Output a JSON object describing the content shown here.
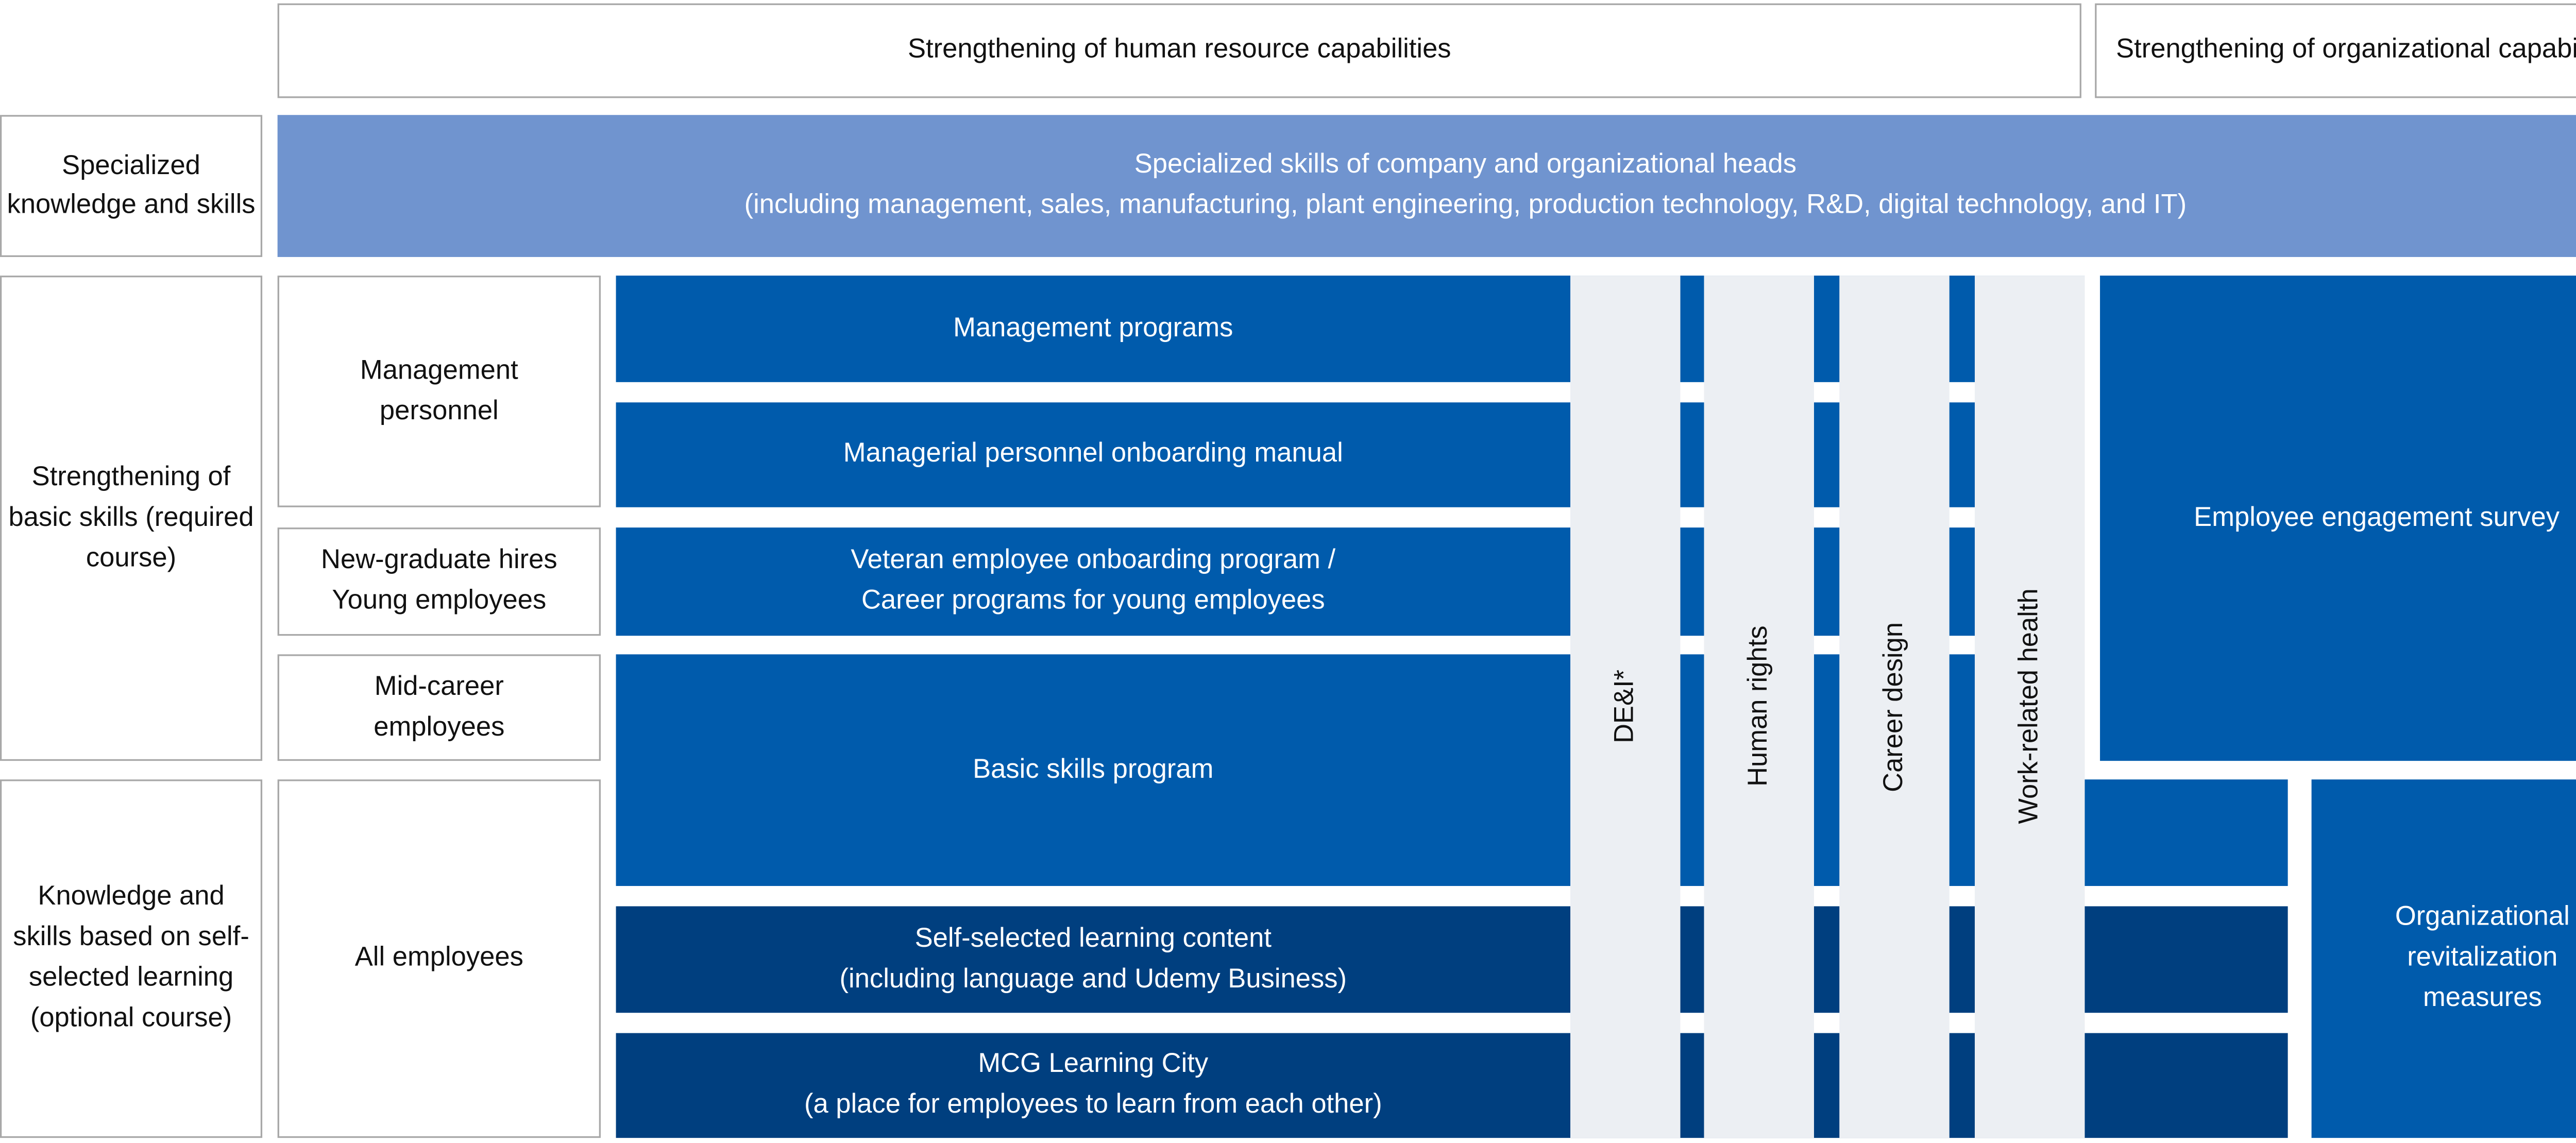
{
  "header": {
    "human_resource": "Strengthening of human resource capabilities",
    "organizational": "Strengthening of organizational capabilities"
  },
  "rows": {
    "specialized": "Specialized knowledge and skills",
    "basic": "Strengthening of basic skills (required course)",
    "self_selected": "Knowledge and skills based on self-selected learning (optional course)"
  },
  "targets": {
    "management": "Management personnel",
    "new_grad": "New-graduate hires Young employees",
    "mid_career": "Mid-career employees",
    "all": "All employees"
  },
  "specialized_bar": {
    "line1": "Specialized skills of company and organizational heads",
    "line2": "(including management, sales, manufacturing, plant engineering, production technology, R&D, digital technology, and IT)"
  },
  "programs": {
    "management_programs": "Management programs",
    "onboarding_manual": "Managerial personnel onboarding manual",
    "veteran_line1": "Veteran employee onboarding program /",
    "veteran_line2": "Career programs for young employees",
    "basic_skills": "Basic skills program",
    "self_line1": "Self-selected learning content",
    "self_line2": "(including language and Udemy Business)",
    "mcg_line1": "MCG Learning City",
    "mcg_line2": "(a place for employees to learn from each other)"
  },
  "columns": [
    "DE&I*",
    "Human rights",
    "Career design",
    "Work-related health"
  ],
  "org": {
    "survey": "Employee engagement survey",
    "revitalization": "Organizational revitalization measures"
  },
  "colors": {
    "blue": "#005bac",
    "dark_blue": "#003f7f",
    "light_blue": "#7094cf",
    "gray": "#eceff3"
  }
}
